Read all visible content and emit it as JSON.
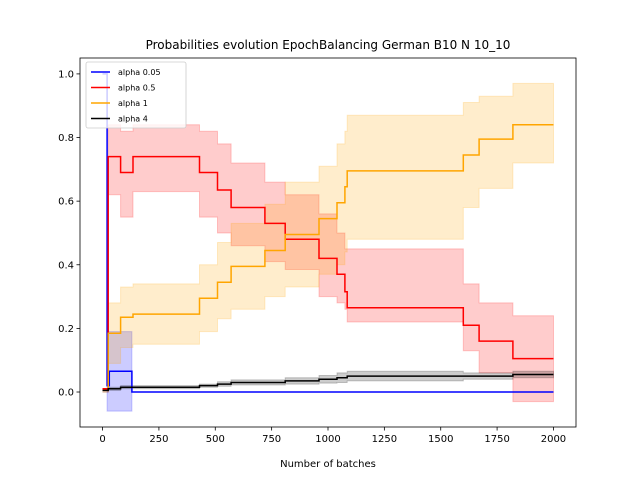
{
  "chart_data": {
    "type": "line",
    "title": "Probabilities evolution EpochBalancing German B10 N 10_10",
    "xlabel": "Number of batches",
    "ylabel": "",
    "xlim": [
      -100,
      2100
    ],
    "ylim": [
      -0.11,
      1.05
    ],
    "xticks": [
      0,
      250,
      500,
      750,
      1000,
      1250,
      1500,
      1750,
      2000
    ],
    "yticks": [
      0.0,
      0.2,
      0.4,
      0.6,
      0.8,
      1.0
    ],
    "xtick_labels": [
      "0",
      "250",
      "500",
      "750",
      "1000",
      "1250",
      "1500",
      "1750",
      "2000"
    ],
    "ytick_labels": [
      "0.0",
      "0.2",
      "0.4",
      "0.6",
      "0.8",
      "1.0"
    ],
    "grid": false,
    "legend_position": "top-left",
    "step": "post",
    "series": [
      {
        "name": "alpha 0.05",
        "color": "#0000ff",
        "x": [
          0,
          20,
          30,
          130,
          2000
        ],
        "y": [
          1.0,
          0.02,
          0.065,
          0.0,
          0.0
        ],
        "band_lower": [
          1.0,
          -0.06,
          -0.06,
          0.0,
          0.0
        ],
        "band_upper": [
          1.0,
          0.19,
          0.19,
          0.0,
          0.0
        ]
      },
      {
        "name": "alpha 0.5",
        "color": "#ff0000",
        "x": [
          0,
          25,
          80,
          135,
          430,
          510,
          570,
          720,
          810,
          960,
          1040,
          1075,
          1085,
          1600,
          1670,
          1820,
          2000
        ],
        "y": [
          0.01,
          0.74,
          0.69,
          0.74,
          0.69,
          0.635,
          0.58,
          0.53,
          0.48,
          0.42,
          0.37,
          0.315,
          0.265,
          0.21,
          0.16,
          0.105,
          0.105
        ],
        "band_lower": [
          0.0,
          0.62,
          0.55,
          0.63,
          0.55,
          0.5,
          0.46,
          0.41,
          0.385,
          0.3,
          0.28,
          0.26,
          0.22,
          0.13,
          0.06,
          -0.03,
          -0.03
        ],
        "band_upper": [
          0.0,
          0.84,
          0.82,
          0.84,
          0.82,
          0.78,
          0.72,
          0.66,
          0.62,
          0.56,
          0.5,
          0.45,
          0.45,
          0.34,
          0.28,
          0.24,
          0.24
        ]
      },
      {
        "name": "alpha 1",
        "color": "#ffa500",
        "x": [
          0,
          25,
          80,
          135,
          430,
          510,
          570,
          720,
          810,
          960,
          1040,
          1075,
          1085,
          1600,
          1670,
          1820,
          2000
        ],
        "y": [
          0.005,
          0.185,
          0.235,
          0.245,
          0.295,
          0.345,
          0.395,
          0.445,
          0.495,
          0.545,
          0.595,
          0.645,
          0.695,
          0.745,
          0.795,
          0.84,
          0.84
        ],
        "band_lower": [
          0.0,
          0.09,
          0.14,
          0.15,
          0.19,
          0.23,
          0.26,
          0.3,
          0.33,
          0.37,
          0.4,
          0.44,
          0.48,
          0.58,
          0.64,
          0.72,
          0.72
        ],
        "band_upper": [
          0.0,
          0.28,
          0.33,
          0.34,
          0.4,
          0.47,
          0.53,
          0.59,
          0.66,
          0.71,
          0.78,
          0.82,
          0.87,
          0.91,
          0.93,
          0.97,
          0.97
        ]
      },
      {
        "name": "alpha 4",
        "color": "#000000",
        "x": [
          0,
          25,
          80,
          135,
          430,
          510,
          570,
          720,
          810,
          960,
          1040,
          1075,
          1085,
          1600,
          1670,
          1820,
          2000
        ],
        "y": [
          0.005,
          0.01,
          0.015,
          0.015,
          0.02,
          0.025,
          0.03,
          0.03,
          0.035,
          0.04,
          0.045,
          0.045,
          0.05,
          0.05,
          0.05,
          0.055,
          0.055
        ],
        "band_lower": [
          0.0,
          0.005,
          0.01,
          0.01,
          0.015,
          0.018,
          0.022,
          0.022,
          0.025,
          0.028,
          0.03,
          0.03,
          0.035,
          0.04,
          0.04,
          0.045,
          0.045
        ],
        "band_upper": [
          0.0,
          0.015,
          0.02,
          0.02,
          0.025,
          0.032,
          0.038,
          0.038,
          0.045,
          0.052,
          0.06,
          0.06,
          0.065,
          0.06,
          0.06,
          0.065,
          0.065
        ]
      }
    ]
  }
}
